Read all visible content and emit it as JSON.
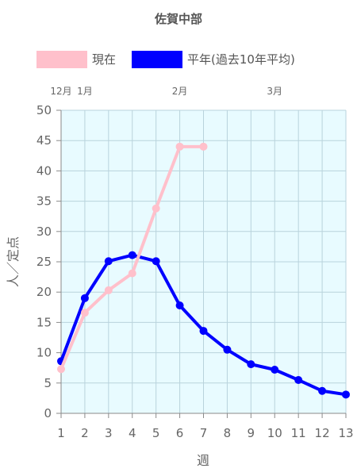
{
  "chart_data": {
    "type": "line",
    "title": "佐賀中部",
    "xlabel": "週",
    "ylabel": "人／定点",
    "ylim": [
      0,
      50
    ],
    "ytick_step": 5,
    "grid": true,
    "legend_position": "top",
    "background_color": "#e8fbff",
    "x": [
      1,
      2,
      3,
      4,
      5,
      6,
      7,
      8,
      9,
      10,
      11,
      12,
      13
    ],
    "month_labels": [
      {
        "week": 1,
        "label": "12月"
      },
      {
        "week": 2,
        "label": "1月"
      },
      {
        "week": 6,
        "label": "2月"
      },
      {
        "week": 10,
        "label": "3月"
      }
    ],
    "series": [
      {
        "name": "現在",
        "color": "#ffc0cb",
        "values": [
          7.3,
          16.6,
          20.3,
          23.1,
          33.8,
          44.0,
          44.0,
          null,
          null,
          null,
          null,
          null,
          null
        ]
      },
      {
        "name": "平年(過去10年平均)",
        "color": "#0000ff",
        "values": [
          8.6,
          19.0,
          25.1,
          26.1,
          25.1,
          17.8,
          13.6,
          10.5,
          8.1,
          7.2,
          5.5,
          3.7,
          3.1
        ]
      }
    ]
  }
}
